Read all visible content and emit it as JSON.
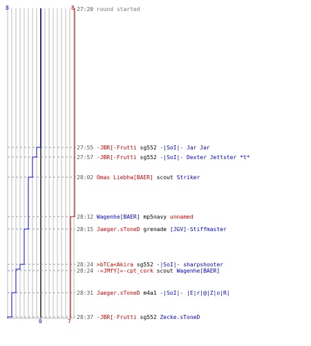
{
  "colors": {
    "blue": "#0000cc",
    "red": "#cc0000",
    "grid": "#bbbbbb",
    "center": "#555555",
    "dash": "#999999",
    "time": "#555555"
  },
  "scoreboard": {
    "blue_top": "8",
    "red_top": "8",
    "blue_bottom": "0",
    "red_bottom": "7"
  },
  "events": [
    {
      "time": "27:20",
      "type": "info",
      "text": "round started"
    },
    {
      "time": "27:55",
      "type": "kill",
      "killer": "-JBR[-Frutti",
      "killer_team": "red",
      "weapon": "sg552",
      "victim": "-|SoI|- Jar Jar",
      "victim_team": "blue"
    },
    {
      "time": "27:57",
      "type": "kill",
      "killer": "-JBR[-Frutti",
      "killer_team": "red",
      "weapon": "sg552",
      "victim": "-|SoI|- Dexter Jettster *t*",
      "victim_team": "blue"
    },
    {
      "time": "28:02",
      "type": "kill",
      "killer": "Omas Liebha[BAER]",
      "killer_team": "red",
      "weapon": "scout",
      "victim": "Striker",
      "victim_team": "blue"
    },
    {
      "time": "28:12",
      "type": "kill",
      "killer": "Wagenhe[BAER]",
      "killer_team": "blue",
      "weapon": "mp5navy",
      "victim": "unnamed",
      "victim_team": "red"
    },
    {
      "time": "28:15",
      "type": "kill",
      "killer": "Jaeger.sToneD",
      "killer_team": "red",
      "weapon": "grenade",
      "victim": "[JGV]-Stiffmaster",
      "victim_team": "blue"
    },
    {
      "time": "28:24",
      "type": "kill",
      "killer": ">bTCa<Akira",
      "killer_team": "red",
      "weapon": "sg552",
      "victim": "-|SoI|- sharpshooter",
      "victim_team": "blue"
    },
    {
      "time": "28:24",
      "type": "kill",
      "killer": "-=JMfY[=-cpt_cork",
      "killer_team": "red",
      "weapon": "scout",
      "victim": "Wagenhe[BAER]",
      "victim_team": "blue"
    },
    {
      "time": "28:31",
      "type": "kill",
      "killer": "Jaeger.sToneD",
      "killer_team": "red",
      "weapon": "m4a1",
      "victim": "-|SoI|- |E|r|@|Z|o|R|",
      "victim_team": "blue"
    },
    {
      "time": "28:37",
      "type": "kill",
      "killer": "-JBR[-Frutti",
      "killer_team": "red",
      "weapon": "sg552",
      "victim": "Zecke.sToneD",
      "victim_team": "blue"
    }
  ],
  "chart_data": {
    "type": "line",
    "title": "",
    "xlabel": "",
    "ylabel": "",
    "series": [
      {
        "color": "#0000cc",
        "times": [
          "27:20",
          "27:55",
          "27:57",
          "28:02",
          "28:15",
          "28:24",
          "28:24",
          "28:31",
          "28:37"
        ],
        "values": [
          8,
          7,
          6,
          5,
          4,
          3,
          2,
          1,
          0
        ]
      },
      {
        "color": "#cc0000",
        "times": [
          "27:20",
          "28:12"
        ],
        "values": [
          8,
          7
        ]
      }
    ]
  }
}
